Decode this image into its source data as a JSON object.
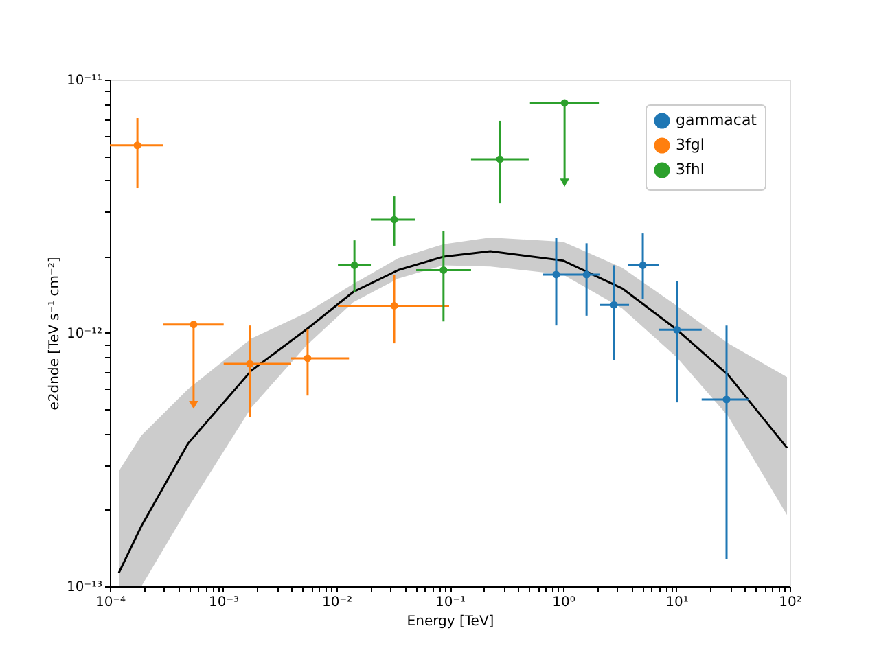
{
  "chart_data": {
    "type": "scatter",
    "xlabel": "Energy [TeV]",
    "ylabel": "e2dnde [TeV s⁻¹ cm⁻²]",
    "log": "xy",
    "grid": false,
    "legend": "top right",
    "xlim": [
      0.0001,
      100
    ],
    "ylim": [
      1e-13,
      1e-11
    ],
    "xticks": [
      {
        "value": 0.0001,
        "label": "10⁻⁴"
      },
      {
        "value": 0.0002,
        "label": null
      },
      {
        "value": 0.0003,
        "label": null
      },
      {
        "value": 0.0004,
        "label": null
      },
      {
        "value": 0.0005,
        "label": null
      },
      {
        "value": 0.0006,
        "label": null
      },
      {
        "value": 0.0007,
        "label": null
      },
      {
        "value": 0.0008,
        "label": null
      },
      {
        "value": 0.0009,
        "label": null
      },
      {
        "value": 0.001,
        "label": "10⁻³"
      },
      {
        "value": 0.002,
        "label": null
      },
      {
        "value": 0.003,
        "label": null
      },
      {
        "value": 0.004,
        "label": null
      },
      {
        "value": 0.005,
        "label": null
      },
      {
        "value": 0.006,
        "label": null
      },
      {
        "value": 0.007,
        "label": null
      },
      {
        "value": 0.008,
        "label": null
      },
      {
        "value": 0.009,
        "label": null
      },
      {
        "value": 0.01,
        "label": "10⁻²"
      },
      {
        "value": 0.02,
        "label": null
      },
      {
        "value": 0.03,
        "label": null
      },
      {
        "value": 0.04,
        "label": null
      },
      {
        "value": 0.05,
        "label": null
      },
      {
        "value": 0.06,
        "label": null
      },
      {
        "value": 0.07,
        "label": null
      },
      {
        "value": 0.08,
        "label": null
      },
      {
        "value": 0.09,
        "label": null
      },
      {
        "value": 0.1,
        "label": "10⁻¹"
      },
      {
        "value": 0.2,
        "label": null
      },
      {
        "value": 0.3,
        "label": null
      },
      {
        "value": 0.4,
        "label": null
      },
      {
        "value": 0.5,
        "label": null
      },
      {
        "value": 0.6,
        "label": null
      },
      {
        "value": 0.7,
        "label": null
      },
      {
        "value": 0.8,
        "label": null
      },
      {
        "value": 0.9,
        "label": null
      },
      {
        "value": 1,
        "label": "10⁰"
      },
      {
        "value": 2,
        "label": null
      },
      {
        "value": 3,
        "label": null
      },
      {
        "value": 4,
        "label": null
      },
      {
        "value": 5,
        "label": null
      },
      {
        "value": 6,
        "label": null
      },
      {
        "value": 7,
        "label": null
      },
      {
        "value": 8,
        "label": null
      },
      {
        "value": 9,
        "label": null
      },
      {
        "value": 10,
        "label": "10¹"
      },
      {
        "value": 20,
        "label": null
      },
      {
        "value": 30,
        "label": null
      },
      {
        "value": 40,
        "label": null
      },
      {
        "value": 50,
        "label": null
      },
      {
        "value": 60,
        "label": null
      },
      {
        "value": 70,
        "label": null
      },
      {
        "value": 80,
        "label": null
      },
      {
        "value": 90,
        "label": null
      },
      {
        "value": 100,
        "label": "10²"
      }
    ],
    "yticks": [
      {
        "value": 1e-13,
        "label": "10⁻¹³"
      },
      {
        "value": 2e-13,
        "label": null
      },
      {
        "value": 3e-13,
        "label": null
      },
      {
        "value": 4e-13,
        "label": null
      },
      {
        "value": 5e-13,
        "label": null
      },
      {
        "value": 6e-13,
        "label": null
      },
      {
        "value": 7e-13,
        "label": null
      },
      {
        "value": 8e-13,
        "label": null
      },
      {
        "value": 9e-13,
        "label": null
      },
      {
        "value": 1e-12,
        "label": "10⁻¹²"
      },
      {
        "value": 2e-12,
        "label": null
      },
      {
        "value": 3e-12,
        "label": null
      },
      {
        "value": 4e-12,
        "label": null
      },
      {
        "value": 5e-12,
        "label": null
      },
      {
        "value": 6e-12,
        "label": null
      },
      {
        "value": 7e-12,
        "label": null
      },
      {
        "value": 8e-12,
        "label": null
      },
      {
        "value": 9e-12,
        "label": null
      },
      {
        "value": 1e-11,
        "label": "10⁻¹¹"
      }
    ],
    "series": [
      {
        "name": "gammacat",
        "marker": "circle",
        "color": "#1f77b4",
        "x": [
          0.87,
          1.61,
          2.81,
          5.05,
          10.1,
          27.7
        ],
        "values": [
          1.7e-12,
          1.7e-12,
          1.29e-12,
          1.85e-12,
          1.03e-12,
          5.46e-13
        ],
        "xerrors": [
          [
            0.658,
            1.18
          ],
          [
            1.18,
            2.12
          ],
          [
            2.12,
            3.82
          ],
          [
            3.72,
            7.05
          ],
          [
            7.05,
            16.7
          ],
          [
            16.7,
            43.3
          ]
        ],
        "errors": [
          [
            1.07e-12,
            2.38e-12
          ],
          [
            1.17e-12,
            2.26e-12
          ],
          [
            7.83e-13,
            1.85e-12
          ],
          [
            1.36e-12,
            2.47e-12
          ],
          [
            5.32e-13,
            1.6e-12
          ],
          [
            1.28e-13,
            1.07e-12
          ]
        ]
      },
      {
        "name": "3fgl",
        "marker": "circle",
        "color": "#ff7f0e",
        "x": [
          0.000175,
          0.000548,
          0.00172,
          0.00556,
          0.0323
        ],
        "values": [
          5.5e-12,
          1.08e-12,
          7.55e-13,
          7.94e-13,
          1.28e-12
        ],
        "xerrors": [
          [
            0.0001,
            0.000296
          ],
          [
            0.000297,
            0.00101
          ],
          [
            0.00101,
            0.00398
          ],
          [
            0.00398,
            0.0129
          ],
          [
            0.0103,
            0.0986
          ]
        ],
        "errors": [
          [
            3.73e-12,
            7.05e-12
          ],
          [
            5.2e-13,
            1.08e-12
          ],
          [
            4.65e-13,
            1.07e-12
          ],
          [
            5.66e-13,
            1.03e-12
          ],
          [
            9.1e-13,
            1.7e-12
          ]
        ]
      },
      {
        "name": "3fhl",
        "marker": "circle",
        "color": "#2ca02c",
        "x": [
          0.0144,
          0.0323,
          0.088,
          0.277,
          1.03
        ],
        "values": [
          1.85e-12,
          2.8e-12,
          1.77e-12,
          4.85e-12,
          8.09e-12
        ],
        "xerrors": [
          [
            0.0103,
            0.0201
          ],
          [
            0.0201,
            0.0491
          ],
          [
            0.0505,
            0.154
          ],
          [
            0.154,
            0.497
          ],
          [
            0.51,
            2.07
          ]
        ],
        "errors": [
          [
            1.45e-12,
            2.32e-12
          ],
          [
            2.21e-12,
            3.46e-12
          ],
          [
            1.11e-12,
            2.53e-12
          ],
          [
            3.25e-12,
            6.88e-12
          ],
          [
            3.92e-12,
            8.09e-12
          ]
        ]
      },
      {
        "type": "line",
        "marker": "none",
        "line_style": "solid",
        "color": "#000000",
        "x": [
          0.00012,
          0.00019,
          0.00049,
          0.00177,
          0.0054,
          0.014,
          0.035,
          0.088,
          0.228,
          1.0,
          3.32,
          10.1,
          28.5,
          94.6
        ],
        "values": [
          1.13e-13,
          1.73e-13,
          3.66e-13,
          7.1e-13,
          1.03e-12,
          1.45e-12,
          1.77e-12,
          2e-12,
          2.1e-12,
          1.93e-12,
          1.5e-12,
          1.03e-12,
          6.84e-13,
          3.52e-13
        ],
        "lower": [
          1e-13,
          1e-13,
          2.04e-13,
          5.07e-13,
          8.9e-13,
          1.32e-12,
          1.64e-12,
          1.85e-12,
          1.83e-12,
          1.7e-12,
          1.25e-12,
          8e-13,
          4.7e-13,
          1.91e-13
        ],
        "upper": [
          2.85e-13,
          3.94e-13,
          6e-13,
          9.5e-13,
          1.2e-12,
          1.56e-12,
          1.97e-12,
          2.24e-12,
          2.38e-12,
          2.29e-12,
          1.81e-12,
          1.28e-12,
          9.1e-13,
          6.7e-13
        ]
      },
      {
        "marker": "triangle",
        "colors": [
          "#ff7f0e",
          "#2ca02c"
        ],
        "x": [
          0.000548,
          1.03
        ],
        "values": [
          5.2e-13,
          3.92e-12
        ]
      }
    ]
  }
}
